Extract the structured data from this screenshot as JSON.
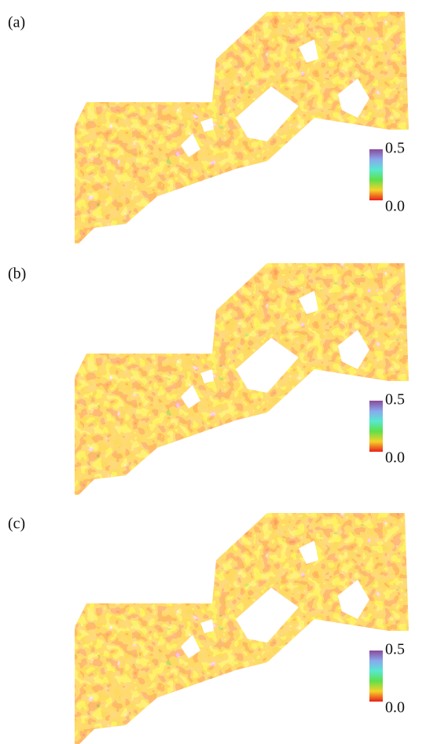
{
  "panels": [
    {
      "label": "(a)",
      "colorbar": {
        "max_label": "0.5",
        "min_label": "0.0"
      }
    },
    {
      "label": "(b)",
      "colorbar": {
        "max_label": "0.5",
        "min_label": "0.0"
      }
    },
    {
      "label": "(c)",
      "colorbar": {
        "max_label": "0.5",
        "min_label": "0.0"
      }
    }
  ]
}
